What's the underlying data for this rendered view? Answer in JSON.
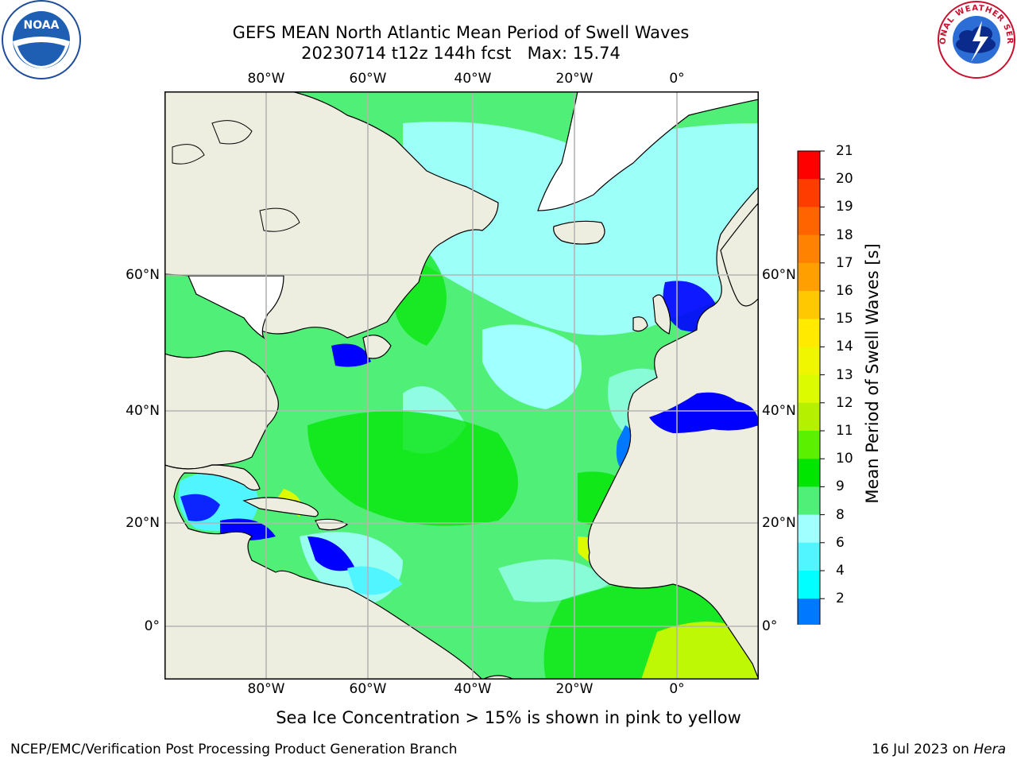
{
  "title_line1": "GEFS MEAN North Atlantic Mean Period of Swell Waves",
  "title_line2": "20230714 t12z 144h fcst   Max: 15.74",
  "map": {
    "lon_ticks": [
      "80°W",
      "60°W",
      "40°W",
      "20°W",
      "0°"
    ],
    "lat_ticks": [
      "60°N",
      "40°N",
      "20°N",
      "0°"
    ],
    "colors": {
      "land": "#eeeee0",
      "grid": "#b4b4b4",
      "coast": "#000000"
    }
  },
  "colorbar": {
    "label": "Mean Period of Swell Waves [s]",
    "ticks": [
      "21",
      "20",
      "19",
      "18",
      "17",
      "16",
      "15",
      "14",
      "13",
      "12",
      "11",
      "10",
      "9",
      "8",
      "6",
      "4",
      "2"
    ],
    "colors": [
      "#ff0000",
      "#ff3c00",
      "#ff6400",
      "#ff8200",
      "#ffa000",
      "#ffc800",
      "#ffea00",
      "#f0f500",
      "#dcfa00",
      "#b4f000",
      "#5af000",
      "#00e600",
      "#50f078",
      "#a0ffff",
      "#50f5ff",
      "#00ffff",
      "#0078ff"
    ],
    "under_color": "#0000ff"
  },
  "note": "Sea Ice Concentration > 15% is shown in pink to yellow",
  "footer_left": "NCEP/EMC/Verification Post Processing Product Generation Branch",
  "footer_date": "16 Jul 2023 on",
  "footer_machine": "Hera",
  "logos": {
    "left": "NOAA",
    "right": "NATIONAL WEATHER SERVICE"
  }
}
